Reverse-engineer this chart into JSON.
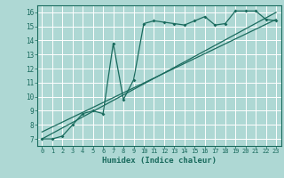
{
  "title": "",
  "xlabel": "Humidex (Indice chaleur)",
  "ylabel": "",
  "bg_color": "#aed8d4",
  "grid_color": "#ffffff",
  "line_color": "#1a6b5e",
  "xlim": [
    -0.5,
    23.5
  ],
  "ylim": [
    6.5,
    16.5
  ],
  "xticks": [
    0,
    1,
    2,
    3,
    4,
    5,
    6,
    7,
    8,
    9,
    10,
    11,
    12,
    13,
    14,
    15,
    16,
    17,
    18,
    19,
    20,
    21,
    22,
    23
  ],
  "yticks": [
    7,
    8,
    9,
    10,
    11,
    12,
    13,
    14,
    15,
    16
  ],
  "line1_x": [
    0,
    1,
    2,
    3,
    4,
    5,
    6,
    7,
    8,
    9,
    10,
    11,
    12,
    13,
    14,
    15,
    16,
    17,
    18,
    19,
    20,
    21,
    22,
    23
  ],
  "line1_y": [
    7.0,
    7.0,
    7.2,
    8.0,
    8.8,
    9.0,
    8.8,
    13.8,
    9.8,
    11.2,
    15.2,
    15.4,
    15.3,
    15.2,
    15.1,
    15.4,
    15.7,
    15.1,
    15.2,
    16.1,
    16.1,
    16.1,
    15.5,
    15.4
  ],
  "line2_x": [
    0,
    23
  ],
  "line2_y": [
    7.0,
    16.0
  ],
  "line3_x": [
    0,
    23
  ],
  "line3_y": [
    7.5,
    15.5
  ]
}
